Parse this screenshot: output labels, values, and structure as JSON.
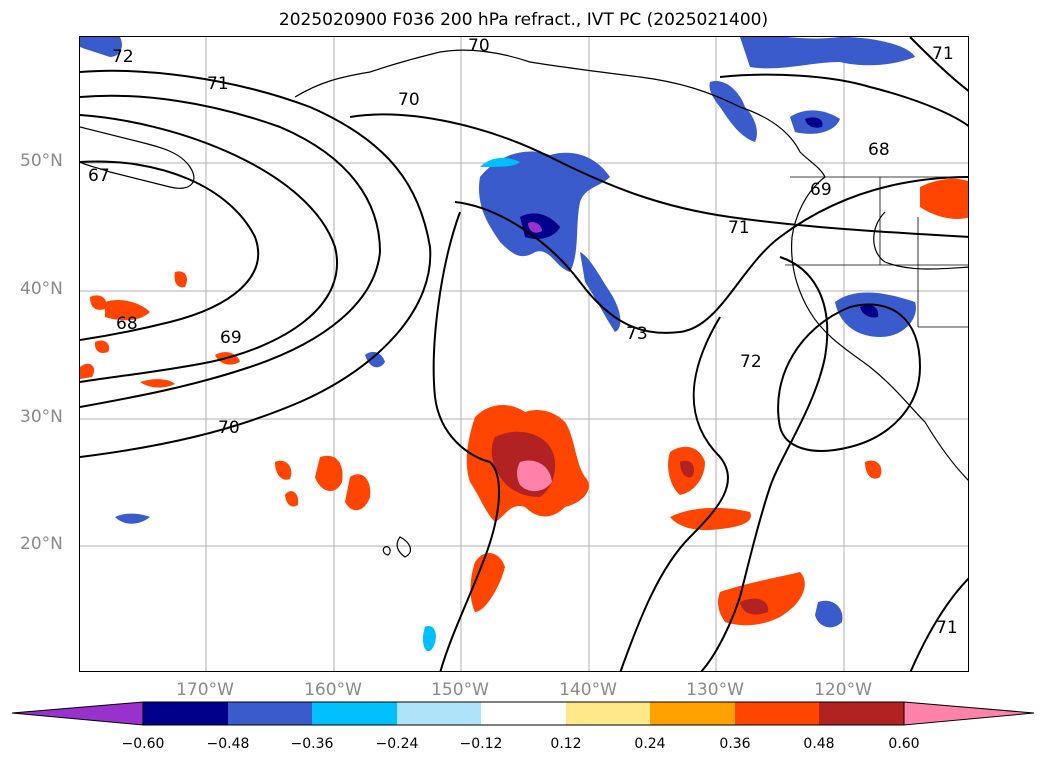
{
  "title": "2025020900 F036 200 hPa refract., IVT PC (2025021400)",
  "lat_labels": [
    "50°N",
    "40°N",
    "30°N",
    "20°N"
  ],
  "lon_labels": [
    "170°W",
    "160°W",
    "150°W",
    "140°W",
    "130°W",
    "120°W"
  ],
  "contour_labels": [
    "72",
    "70",
    "71",
    "71",
    "70",
    "67",
    "68",
    "69",
    "71",
    "68",
    "69",
    "73",
    "72",
    "70",
    "71"
  ],
  "colorbar": {
    "ticks": [
      "−0.60",
      "−0.48",
      "−0.36",
      "−0.24",
      "−0.12",
      "0.12",
      "0.24",
      "0.36",
      "0.48",
      "0.60"
    ],
    "colors": [
      "#9932cc",
      "#00008b",
      "#3a5bcc",
      "#00bfff",
      "#aee2fa",
      "#ffffff",
      "#ffe88a",
      "#ffa200",
      "#ff4500",
      "#b22222",
      "#ff82ab"
    ]
  }
}
